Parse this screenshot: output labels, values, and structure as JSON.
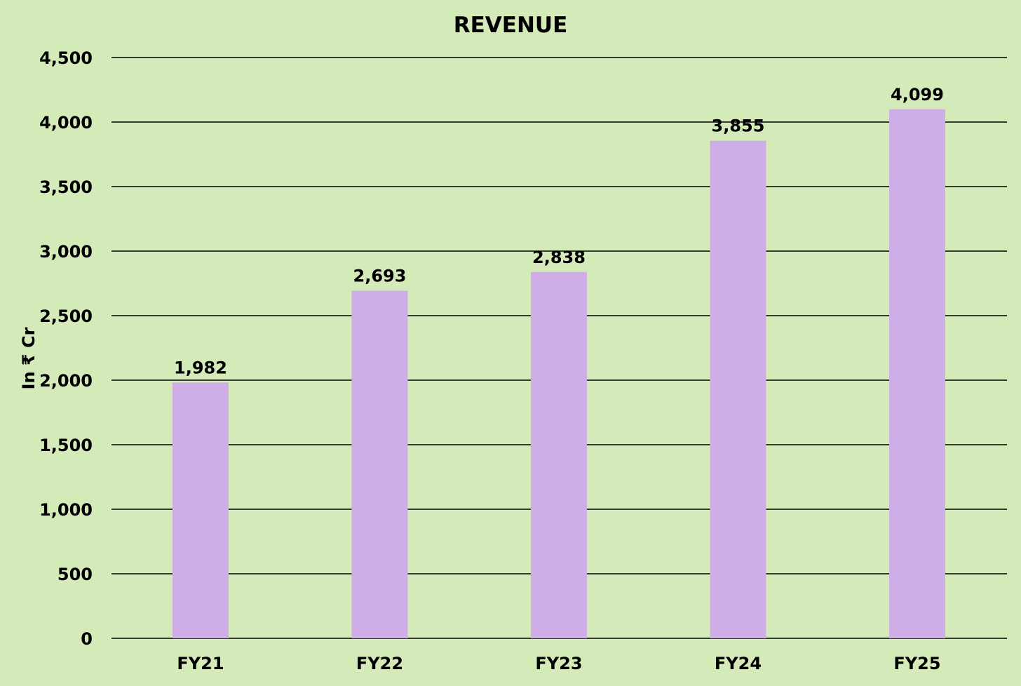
{
  "colors": {
    "background": "#d4eab8",
    "bar": "#cfaee8",
    "gridline": "#000000",
    "text": "#000000"
  },
  "chart_data": {
    "type": "bar",
    "title": "REVENUE",
    "xlabel": "",
    "ylabel": "In ₹ Cr",
    "categories": [
      "FY21",
      "FY22",
      "FY23",
      "FY24",
      "FY25"
    ],
    "series": [
      {
        "values": [
          1982,
          2693,
          2838,
          3855,
          4099
        ],
        "data_labels": [
          "1,982",
          "2,693",
          "2,838",
          "3,855",
          "4,099"
        ]
      }
    ],
    "ylim": [
      0,
      4500
    ],
    "yticks": [
      0,
      500,
      1000,
      1500,
      2000,
      2500,
      3000,
      3500,
      4000,
      4500
    ],
    "ytick_labels": [
      "0",
      "500",
      "1,000",
      "1,500",
      "2,000",
      "2,500",
      "3,000",
      "3,500",
      "4,000",
      "4,500"
    ],
    "grid": true,
    "legend": "none"
  }
}
